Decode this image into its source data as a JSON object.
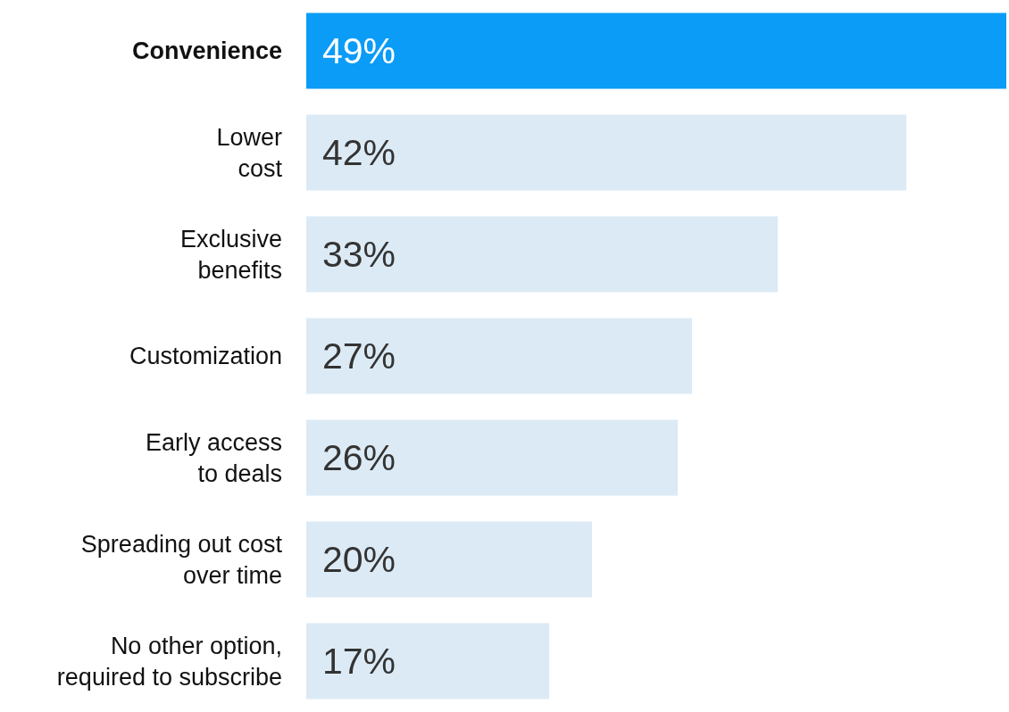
{
  "chart_data": {
    "type": "bar",
    "orientation": "horizontal",
    "categories": [
      "Convenience",
      "Lower\ncost",
      "Exclusive\nbenefits",
      "Customization",
      "Early access\nto deals",
      "Spreading out cost\nover time",
      "No other option,\nrequired to subscribe"
    ],
    "values": [
      49,
      42,
      33,
      27,
      26,
      20,
      17
    ],
    "value_labels": [
      "49%",
      "42%",
      "33%",
      "27%",
      "26%",
      "20%",
      "17%"
    ],
    "colors": [
      "#0a9cf6",
      "#dceaf5",
      "#dceaf5",
      "#dceaf5",
      "#dceaf5",
      "#dceaf5",
      "#dceaf5"
    ]
  }
}
